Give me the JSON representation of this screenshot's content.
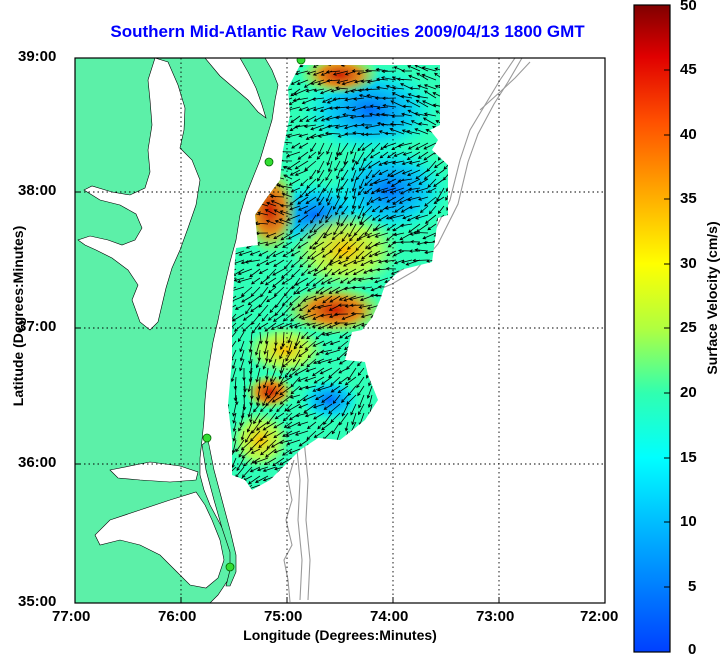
{
  "title": "Southern Mid-Atlantic Raw Velocities 2009/04/13 1800 GMT",
  "axes": {
    "xlabel": "Longitude (Degrees:Minutes)",
    "ylabel": "Latitude (Degrees:Minutes)",
    "x_ticks": [
      "77:00",
      "76:00",
      "75:00",
      "74:00",
      "73:00",
      "72:00"
    ],
    "y_ticks": [
      "39:00",
      "38:00",
      "37:00",
      "36:00",
      "35:00"
    ],
    "x_range": [
      -77,
      -72
    ],
    "y_range": [
      35,
      39
    ],
    "grid": "dotted"
  },
  "colorbar": {
    "label": "Surface Velocity (cm/s)",
    "ticks": [
      "50",
      "45",
      "40",
      "35",
      "30",
      "25",
      "20",
      "15",
      "10",
      "5",
      "0"
    ],
    "range": [
      0,
      50
    ],
    "colormap": "jet"
  },
  "colors": {
    "land": "#5cf0a8",
    "title": "#0000ff",
    "coastline": "#000000",
    "bathymetry": "#9a9a9a",
    "stations": "#33dd33"
  }
}
